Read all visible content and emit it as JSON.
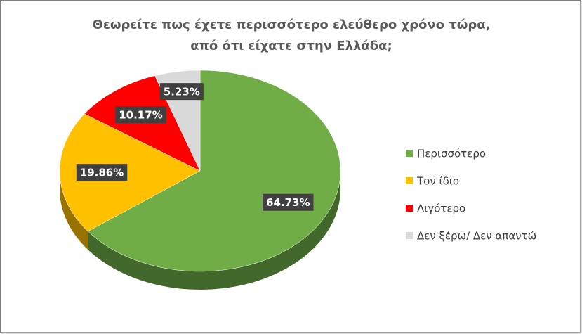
{
  "chart_data": {
    "type": "pie",
    "title": [
      "Θεωρείτε πως έχετε περισσότερο ελεύθερο χρόνο τώρα,",
      "από ότι είχατε στην Ελλάδα;"
    ],
    "categories": [
      "Περισσότερο",
      "Τον ίδιο",
      "Λιγότερο",
      "Δεν ξέρω/ Δεν απαντώ"
    ],
    "values": [
      64.73,
      19.86,
      10.17,
      5.23
    ],
    "value_labels": [
      "64.73%",
      "19.86%",
      "10.17%",
      "5.23%"
    ],
    "colors": [
      "#70ad47",
      "#ffc000",
      "#ff0000",
      "#d9d9d9"
    ],
    "legend": "right"
  }
}
